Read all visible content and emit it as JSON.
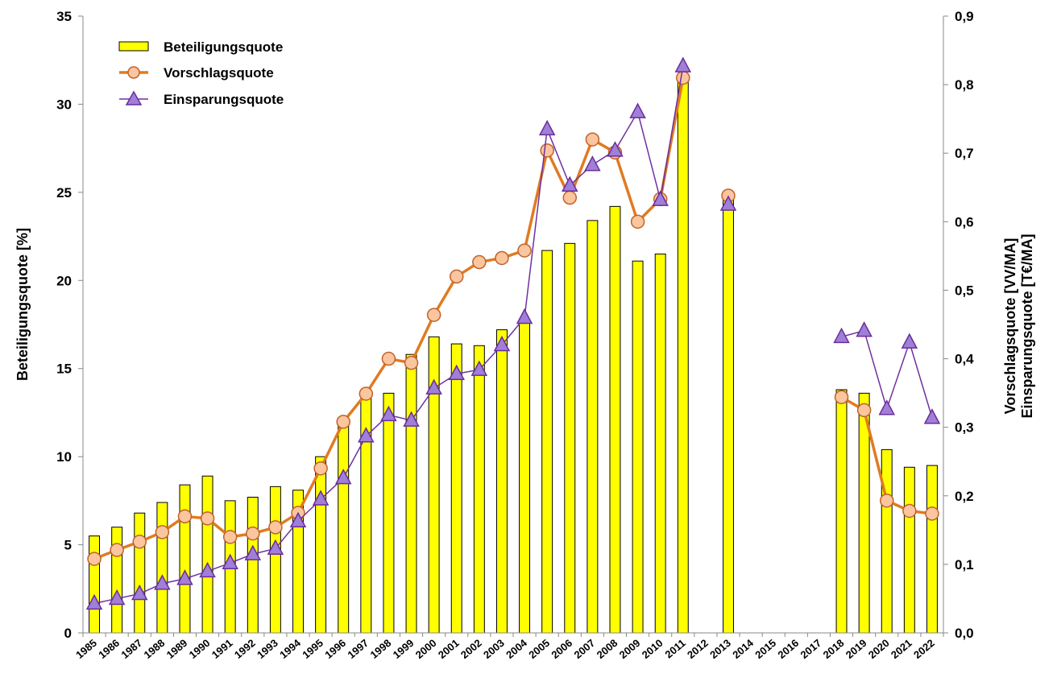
{
  "chart_data": {
    "type": "bar+line",
    "title": "",
    "categories": [
      "1985",
      "1986",
      "1987",
      "1988",
      "1989",
      "1990",
      "1991",
      "1992",
      "1993",
      "1994",
      "1995",
      "1996",
      "1997",
      "1998",
      "1999",
      "2000",
      "2001",
      "2002",
      "2003",
      "2004",
      "2005",
      "2006",
      "2007",
      "2008",
      "2009",
      "2010",
      "2011",
      "2012",
      "2013",
      "2014",
      "2015",
      "2016",
      "2017",
      "2018",
      "2019",
      "2020",
      "2021",
      "2022"
    ],
    "y_left": {
      "label": "Beteiligungsquote [%]",
      "range": [
        0,
        35
      ],
      "ticks": [
        "0",
        "5",
        "10",
        "15",
        "20",
        "25",
        "30",
        "35"
      ]
    },
    "y_right": {
      "label_line1": "Vorschlagsquote [VV/MA]",
      "label_line2": "Einsparungsquote [T€/MA]",
      "range": [
        0,
        0.9
      ],
      "ticks": [
        "0,0",
        "0,1",
        "0,2",
        "0,3",
        "0,4",
        "0,5",
        "0,6",
        "0,7",
        "0,8",
        "0,9"
      ]
    },
    "series": [
      {
        "name": "Beteiligungsquote",
        "type": "bar",
        "axis": "left",
        "color": "#ffff00",
        "values": [
          5.5,
          6.0,
          6.8,
          7.4,
          8.4,
          8.9,
          7.5,
          7.7,
          8.3,
          8.1,
          10.0,
          12.0,
          13.6,
          13.6,
          15.8,
          16.8,
          16.4,
          16.3,
          17.2,
          17.8,
          21.7,
          22.1,
          23.4,
          24.2,
          21.1,
          21.5,
          31.5,
          null,
          24.8,
          null,
          null,
          null,
          null,
          13.8,
          13.6,
          10.4,
          9.4,
          9.5
        ]
      },
      {
        "name": "Vorschlagsquote",
        "type": "line",
        "axis": "right",
        "color": "#e07b20",
        "marker": "circle",
        "values": [
          0.108,
          0.121,
          0.133,
          0.147,
          0.17,
          0.167,
          0.14,
          0.145,
          0.154,
          0.175,
          0.24,
          0.308,
          0.349,
          0.4,
          0.394,
          0.464,
          0.52,
          0.541,
          0.547,
          0.558,
          0.704,
          0.635,
          0.72,
          0.701,
          0.6,
          0.633,
          0.81,
          null,
          0.638,
          null,
          null,
          null,
          null,
          0.344,
          0.325,
          0.193,
          0.178,
          0.174
        ]
      },
      {
        "name": "Einsparungsquote",
        "type": "line",
        "axis": "right",
        "color": "#7030a0",
        "marker": "triangle",
        "values": [
          0.043,
          0.05,
          0.057,
          0.072,
          0.079,
          0.09,
          0.102,
          0.115,
          0.123,
          0.163,
          0.195,
          0.226,
          0.287,
          0.318,
          0.31,
          0.357,
          0.378,
          0.384,
          0.42,
          0.46,
          0.735,
          0.653,
          0.683,
          0.704,
          0.76,
          0.632,
          0.827,
          null,
          0.625,
          null,
          null,
          null,
          null,
          0.432,
          0.441,
          0.327,
          0.424,
          0.314
        ]
      }
    ],
    "legend": {
      "position": "top-left",
      "entries": [
        "Beteiligungsquote",
        "Vorschlagsquote",
        "Einsparungsquote"
      ]
    }
  }
}
